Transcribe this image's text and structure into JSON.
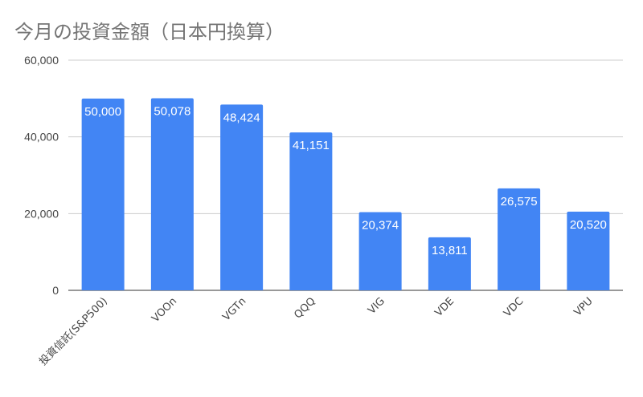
{
  "chart_data": {
    "type": "bar",
    "title": "今月の投資金額（日本円換算）",
    "categories": [
      "投資信託(S&P500)",
      "VOOn",
      "VGTn",
      "QQQ",
      "VIG",
      "VDE",
      "VDC",
      "VPU"
    ],
    "values": [
      50000,
      50078,
      48424,
      41151,
      20374,
      13811,
      26575,
      20520
    ],
    "data_labels": [
      "50,000",
      "50,078",
      "48,424",
      "41,151",
      "20,374",
      "13,811",
      "26,575",
      "20,520"
    ],
    "ylim": [
      0,
      60000
    ],
    "yticks": [
      0,
      20000,
      40000,
      60000
    ],
    "ytick_labels": [
      "0",
      "20,000",
      "40,000",
      "60,000"
    ],
    "grid": true,
    "legend": "none",
    "bar_color": "#4285f4",
    "grid_color": "#cccccc"
  }
}
